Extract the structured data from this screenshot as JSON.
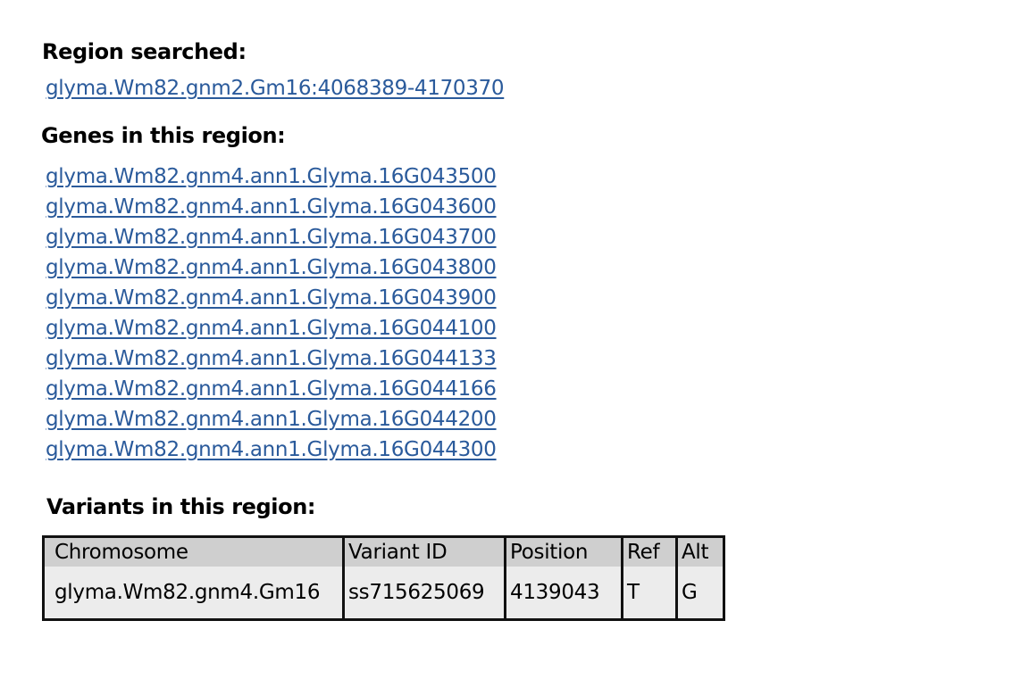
{
  "region": {
    "heading": "Region searched:",
    "link": "glyma.Wm82.gnm2.Gm16:4068389-4170370"
  },
  "genes": {
    "heading": "Genes in this region:",
    "items": [
      "glyma.Wm82.gnm4.ann1.Glyma.16G043500",
      "glyma.Wm82.gnm4.ann1.Glyma.16G043600",
      "glyma.Wm82.gnm4.ann1.Glyma.16G043700",
      "glyma.Wm82.gnm4.ann1.Glyma.16G043800",
      "glyma.Wm82.gnm4.ann1.Glyma.16G043900",
      "glyma.Wm82.gnm4.ann1.Glyma.16G044100",
      "glyma.Wm82.gnm4.ann1.Glyma.16G044133",
      "glyma.Wm82.gnm4.ann1.Glyma.16G044166",
      "glyma.Wm82.gnm4.ann1.Glyma.16G044200",
      "glyma.Wm82.gnm4.ann1.Glyma.16G044300"
    ]
  },
  "variants": {
    "heading": "Variants in this region:",
    "columns": [
      "Chromosome",
      "Variant ID",
      "Position",
      "Ref",
      "Alt"
    ],
    "rows": [
      [
        "glyma.Wm82.gnm4.Gm16",
        "ss715625069",
        "4139043",
        "T",
        "G"
      ]
    ]
  },
  "colors": {
    "link": "#2a5a9b",
    "table_header_bg": "#cfcfcf",
    "table_row_bg": "#ececec"
  }
}
